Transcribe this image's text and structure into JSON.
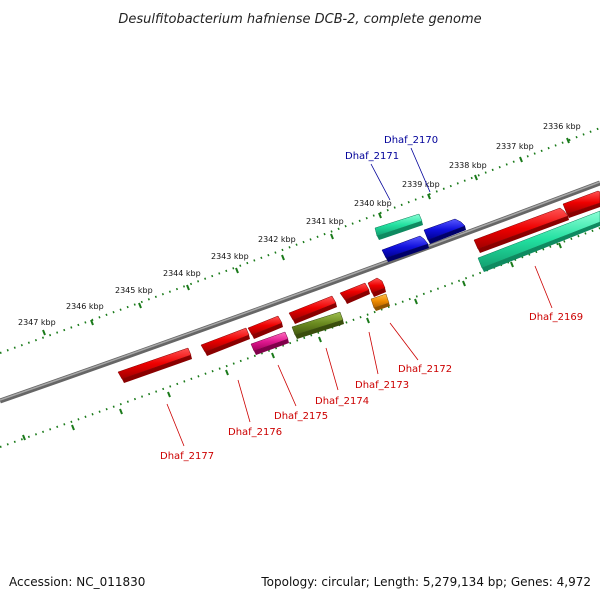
{
  "title": "Desulfitobacterium hafniense DCB-2, complete genome",
  "footer": {
    "accession": "Accession: NC_011830",
    "summary": "Topology: circular; Length: 5,279,134 bp; Genes: 4,972"
  },
  "scale_labels": [
    "2336 kbp",
    "2337 kbp",
    "2338 kbp",
    "2339 kbp",
    "2340 kbp",
    "2341 kbp",
    "2342 kbp",
    "2343 kbp",
    "2344 kbp",
    "2345 kbp",
    "2346 kbp",
    "2347 kbp"
  ],
  "genes": [
    {
      "name": "Dhaf_2169",
      "color": "#cc0000"
    },
    {
      "name": "Dhaf_2170",
      "color": "#000099"
    },
    {
      "name": "Dhaf_2171",
      "color": "#000099"
    },
    {
      "name": "Dhaf_2172",
      "color": "#cc0000"
    },
    {
      "name": "Dhaf_2173",
      "color": "#cc0000"
    },
    {
      "name": "Dhaf_2174",
      "color": "#cc0000"
    },
    {
      "name": "Dhaf_2175",
      "color": "#cc0000"
    },
    {
      "name": "Dhaf_2176",
      "color": "#cc0000"
    },
    {
      "name": "Dhaf_2177",
      "color": "#cc0000"
    }
  ],
  "colors": {
    "backbone": "#7a7a7a",
    "tick": "#1a7a1a",
    "red": "#ee0000",
    "blue": "#1010dd",
    "teal": "#22e0a0",
    "olive": "#6a8a20",
    "magenta": "#e01890",
    "orange": "#f08c00"
  }
}
